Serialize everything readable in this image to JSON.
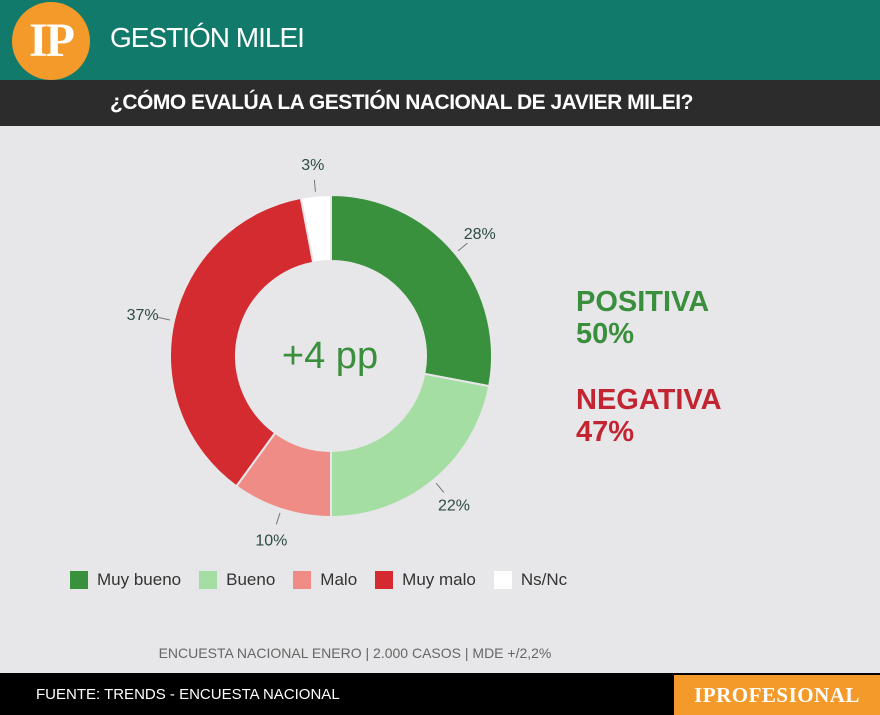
{
  "header": {
    "logo": "IP",
    "title": "GESTIÓN MILEI"
  },
  "question": "¿CÓMO EVALÚA LA GESTIÓN NACIONAL DE JAVIER MILEI?",
  "center_label": "+4 pp",
  "evaluation": {
    "positive_label": "POSITIVA",
    "positive_value": "50%",
    "negative_label": "NEGATIVA",
    "negative_value": "47%"
  },
  "chart_data": {
    "type": "pie",
    "categories": [
      "Muy bueno",
      "Bueno",
      "Malo",
      "Muy malo",
      "Ns/Nc"
    ],
    "values": [
      28,
      22,
      10,
      37,
      3
    ],
    "labels": [
      "28%",
      "22%",
      "10%",
      "37%",
      "3%"
    ],
    "colors": [
      "#3a913d",
      "#a5dea3",
      "#ef8c86",
      "#d32b2f",
      "#ffffff"
    ],
    "legend_position": "bottom",
    "donut": true
  },
  "survey_note": "ENCUESTA NACIONAL ENERO | 2.000 CASOS | MDE +/2,2%",
  "footer": {
    "source": "FUENTE: TRENDS - ENCUESTA NACIONAL",
    "brand": "IPROFESIONAL"
  }
}
